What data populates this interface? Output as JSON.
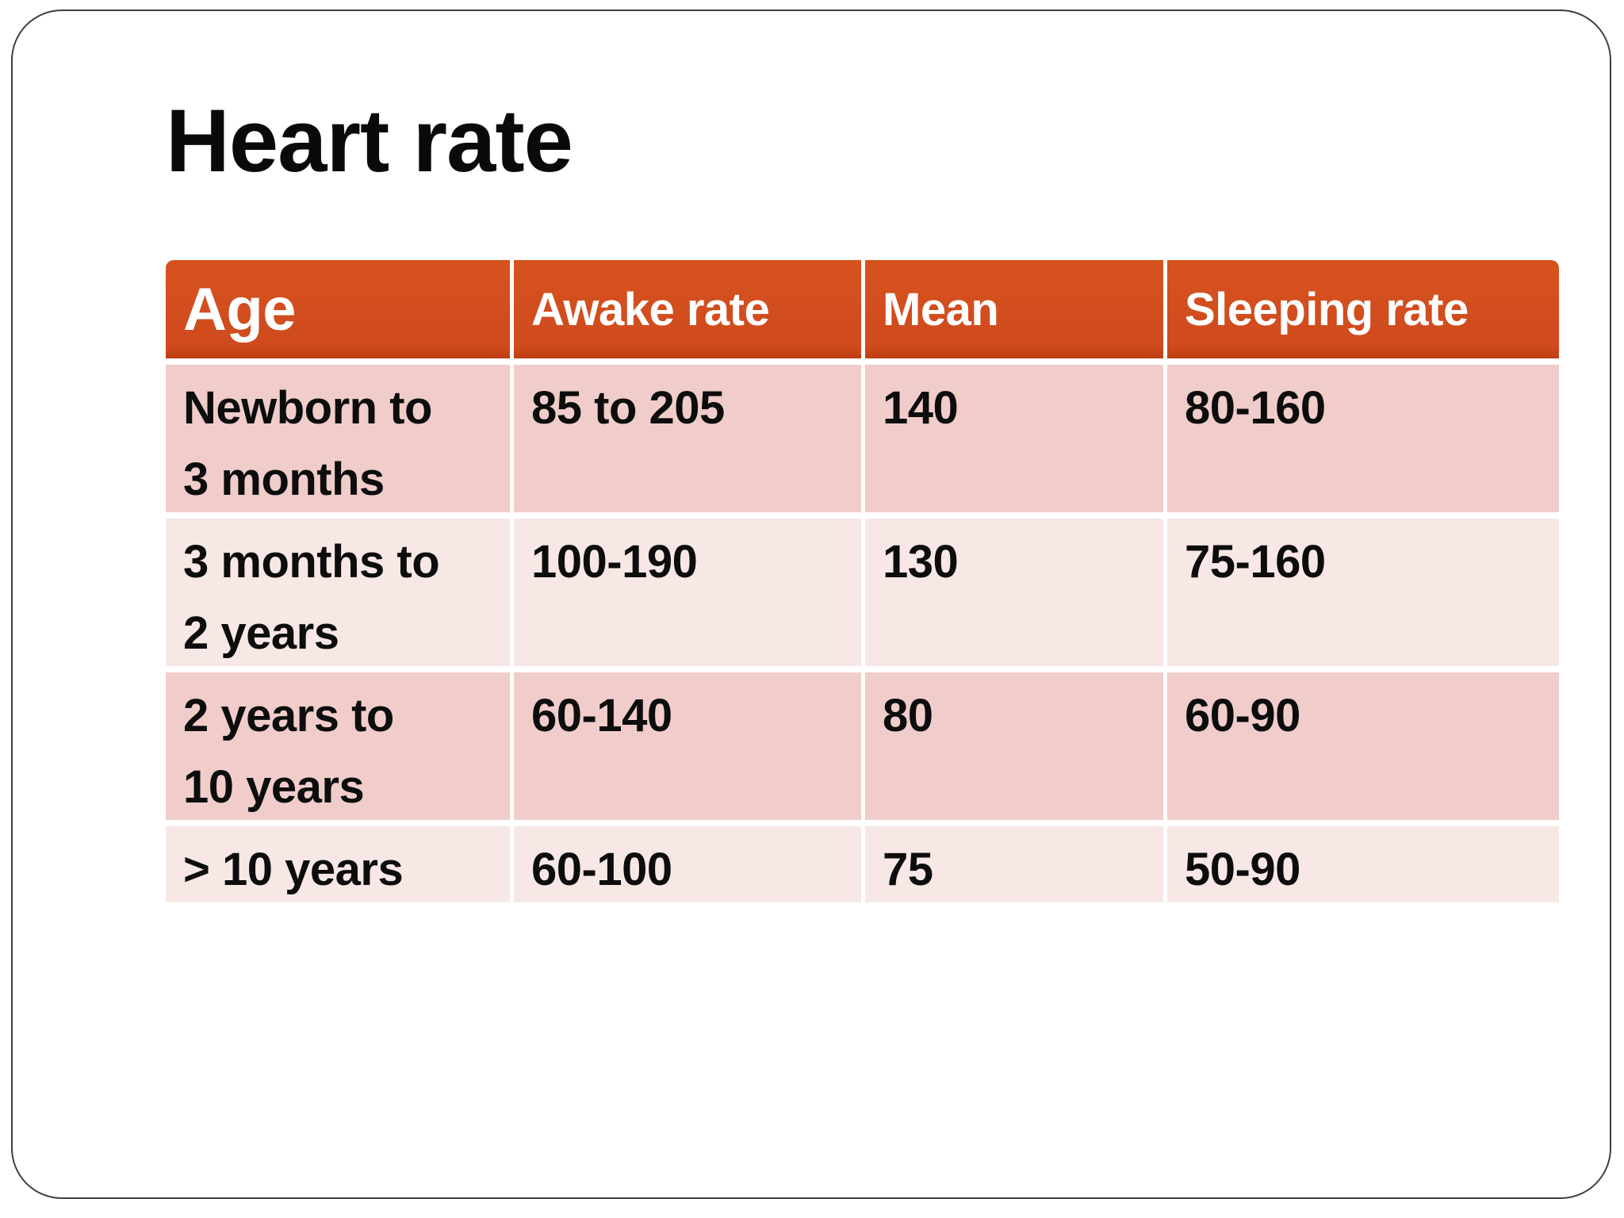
{
  "slide": {
    "title": "Heart rate"
  },
  "table": {
    "headers": {
      "age": "Age",
      "awake": "Awake rate",
      "mean": "Mean",
      "sleeping": "Sleeping rate"
    },
    "rows": [
      {
        "age": "Newborn to\n3 months",
        "awake": "85 to 205",
        "mean": "140",
        "sleeping": "80-160"
      },
      {
        "age": "3 months to\n2 years",
        "awake": "100-190",
        "mean": "130",
        "sleeping": "75-160"
      },
      {
        "age": "2 years to\n10 years",
        "awake": "60-140",
        "mean": "80",
        "sleeping": "60-90"
      },
      {
        "age": "> 10 years",
        "awake": "60-100",
        "mean": "75",
        "sleeping": "50-90"
      }
    ],
    "colors": {
      "header_bg": "#CF4A1D",
      "header_text": "#FFFFFF",
      "row_odd_bg": "#F0CDCA",
      "row_even_bg": "#F7E8E5",
      "body_text": "#0D0D0D",
      "slide_border": "#3F3F3F"
    }
  }
}
